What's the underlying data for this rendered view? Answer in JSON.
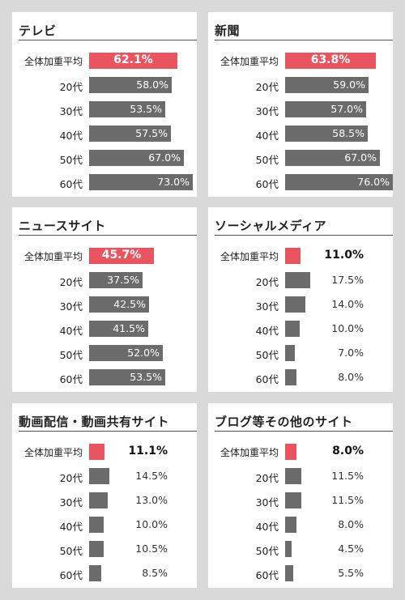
{
  "chart_data": [
    {
      "type": "bar",
      "title": "テレビ",
      "categories": [
        "全体加重平均",
        "20代",
        "30代",
        "40代",
        "50代",
        "60代"
      ],
      "values": [
        62.1,
        58.0,
        53.5,
        57.5,
        67.0,
        73.0
      ],
      "value_labels": [
        "62.1%",
        "58.0%",
        "53.5%",
        "57.5%",
        "67.0%",
        "73.0%"
      ],
      "xlim": [
        0,
        80
      ],
      "highlight_color": "#e9545e",
      "bar_color": "#6b6b6b"
    },
    {
      "type": "bar",
      "title": "新聞",
      "categories": [
        "全体加重平均",
        "20代",
        "30代",
        "40代",
        "50代",
        "60代"
      ],
      "values": [
        63.8,
        59.0,
        57.0,
        58.5,
        67.0,
        76.0
      ],
      "value_labels": [
        "63.8%",
        "59.0%",
        "57.0%",
        "58.5%",
        "67.0%",
        "76.0%"
      ],
      "xlim": [
        0,
        80
      ],
      "highlight_color": "#e9545e",
      "bar_color": "#6b6b6b"
    },
    {
      "type": "bar",
      "title": "ニュースサイト",
      "categories": [
        "全体加重平均",
        "20代",
        "30代",
        "40代",
        "50代",
        "60代"
      ],
      "values": [
        45.7,
        37.5,
        42.5,
        41.5,
        52.0,
        53.5
      ],
      "value_labels": [
        "45.7%",
        "37.5%",
        "42.5%",
        "41.5%",
        "52.0%",
        "53.5%"
      ],
      "xlim": [
        0,
        80
      ],
      "highlight_color": "#e9545e",
      "bar_color": "#6b6b6b"
    },
    {
      "type": "bar",
      "title": "ソーシャルメディア",
      "categories": [
        "全体加重平均",
        "20代",
        "30代",
        "40代",
        "50代",
        "60代"
      ],
      "values": [
        11.0,
        17.5,
        14.0,
        10.0,
        7.0,
        8.0
      ],
      "value_labels": [
        "11.0%",
        "17.5%",
        "14.0%",
        "10.0%",
        "7.0%",
        "8.0%"
      ],
      "xlim": [
        0,
        80
      ],
      "highlight_color": "#e9545e",
      "bar_color": "#6b6b6b"
    },
    {
      "type": "bar",
      "title": "動画配信・動画共有サイト",
      "categories": [
        "全体加重平均",
        "20代",
        "30代",
        "40代",
        "50代",
        "60代"
      ],
      "values": [
        11.1,
        14.5,
        13.0,
        10.0,
        10.5,
        8.5
      ],
      "value_labels": [
        "11.1%",
        "14.5%",
        "13.0%",
        "10.0%",
        "10.5%",
        "8.5%"
      ],
      "xlim": [
        0,
        80
      ],
      "highlight_color": "#e9545e",
      "bar_color": "#6b6b6b"
    },
    {
      "type": "bar",
      "title": "ブログ等その他のサイト",
      "categories": [
        "全体加重平均",
        "20代",
        "30代",
        "40代",
        "50代",
        "60代"
      ],
      "values": [
        8.0,
        11.5,
        11.5,
        8.0,
        4.5,
        5.5
      ],
      "value_labels": [
        "8.0%",
        "11.5%",
        "11.5%",
        "8.0%",
        "4.5%",
        "5.5%"
      ],
      "xlim": [
        0,
        80
      ],
      "highlight_color": "#e9545e",
      "bar_color": "#6b6b6b"
    }
  ]
}
